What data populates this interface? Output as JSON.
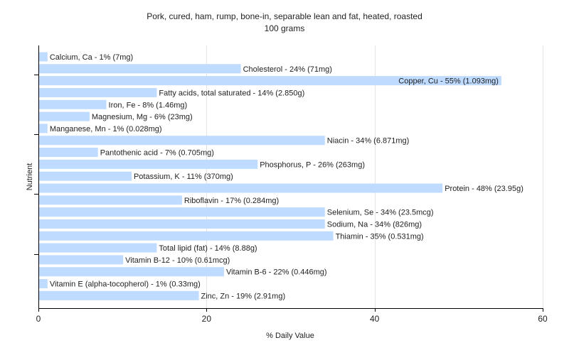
{
  "chart_data": {
    "type": "bar",
    "orientation": "horizontal",
    "title": "Pork, cured, ham, rump, bone-in, separable lean and fat, heated, roasted",
    "subtitle": "100 grams",
    "xlabel": "% Daily Value",
    "ylabel": "Nutrient",
    "xlim": [
      0,
      60
    ],
    "xticks": [
      0,
      20,
      40,
      60
    ],
    "grid": true,
    "colors": {
      "bar": "#bfdbff",
      "grid": "#e4e4e4",
      "axis": "#000000",
      "plot_bg": "#ffffff"
    },
    "categories": [
      "Calcium, Ca",
      "Cholesterol",
      "Copper, Cu",
      "Fatty acids, total saturated",
      "Iron, Fe",
      "Magnesium, Mg",
      "Manganese, Mn",
      "Niacin",
      "Pantothenic acid",
      "Phosphorus, P",
      "Potassium, K",
      "Protein",
      "Riboflavin",
      "Selenium, Se",
      "Sodium, Na",
      "Thiamin",
      "Total lipid (fat)",
      "Vitamin B-12",
      "Vitamin B-6",
      "Vitamin E (alpha-tocopherol)",
      "Zinc, Zn"
    ],
    "values": [
      1,
      24,
      55,
      14,
      8,
      6,
      1,
      34,
      7,
      26,
      11,
      48,
      17,
      34,
      34,
      35,
      14,
      10,
      22,
      1,
      19
    ],
    "labels": [
      "Calcium, Ca - 1% (7mg)",
      "Cholesterol - 24% (71mg)",
      "Copper, Cu - 55% (1.093mg)",
      "Fatty acids, total saturated - 14% (2.850g)",
      "Iron, Fe - 8% (1.46mg)",
      "Magnesium, Mg - 6% (23mg)",
      "Manganese, Mn - 1% (0.028mg)",
      "Niacin - 34% (6.871mg)",
      "Pantothenic acid - 7% (0.705mg)",
      "Phosphorus, P - 26% (263mg)",
      "Potassium, K - 11% (370mg)",
      "Protein - 48% (23.95g)",
      "Riboflavin - 17% (0.284mg)",
      "Selenium, Se - 34% (23.5mcg)",
      "Sodium, Na - 34% (826mg)",
      "Thiamin - 35% (0.531mg)",
      "Total lipid (fat) - 14% (8.88g)",
      "Vitamin B-12 - 10% (0.61mcg)",
      "Vitamin B-6 - 22% (0.446mg)",
      "Vitamin E (alpha-tocopherol) - 1% (0.33mg)",
      "Zinc, Zn - 19% (2.91mg)"
    ]
  }
}
